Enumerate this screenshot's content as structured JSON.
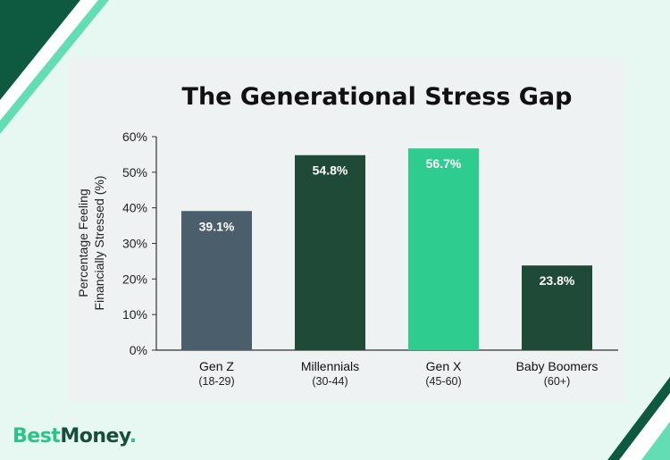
{
  "brand": {
    "part1": "Best",
    "part2": "Money",
    "accent": "#2bc487",
    "dark": "#0d5a41"
  },
  "chart_data": {
    "type": "bar",
    "title": "The Generational Stress Gap",
    "ylabel_line1": "Percentage Feeling",
    "ylabel_line2": "Financially Stressed (%)",
    "xlabel": "",
    "ylim": [
      0,
      60
    ],
    "yticks": [
      0,
      10,
      20,
      30,
      40,
      50,
      60
    ],
    "ytick_labels": [
      "0%",
      "10%",
      "20%",
      "30%",
      "40%",
      "50%",
      "60%"
    ],
    "categories": [
      "Gen Z",
      "Millennials",
      "Gen X",
      "Baby Boomers"
    ],
    "category_sublabels": [
      "(18-29)",
      "(30-44)",
      "(45-60)",
      "(60+)"
    ],
    "values": [
      39.1,
      54.8,
      56.7,
      23.8
    ],
    "value_labels": [
      "39.1%",
      "54.8%",
      "56.7%",
      "23.8%"
    ],
    "colors": [
      "#4a5f6b",
      "#1f4a37",
      "#2ecc8f",
      "#1f4a37"
    ],
    "grid": false
  }
}
